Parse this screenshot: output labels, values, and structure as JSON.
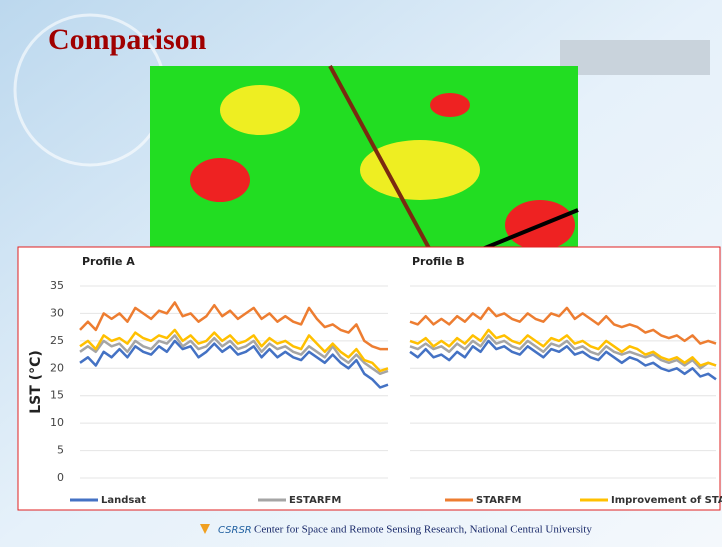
{
  "slide": {
    "title": "Comparison",
    "footer": "Center for Space and Remote Sensing Research, National Central University",
    "logo_text": "CSRSR"
  },
  "chart_data": [
    {
      "type": "line",
      "title": "Profile A",
      "y_label": "LST (°C)",
      "ylim": [
        0,
        35
      ],
      "yticks": [
        0,
        5,
        10,
        15,
        20,
        25,
        30,
        35
      ],
      "grid": true,
      "series": [
        {
          "name": "Landsat",
          "color": "#4472c4",
          "values": [
            21,
            22,
            20.5,
            23,
            22,
            23.5,
            22,
            24,
            23,
            22.5,
            24,
            23,
            25,
            23.5,
            24,
            22,
            23,
            24.5,
            23,
            24,
            22.5,
            23,
            24,
            22,
            23.5,
            22,
            23,
            22,
            21.5,
            23,
            22,
            21,
            22.5,
            21,
            20,
            21.5,
            19,
            18,
            16.5,
            17
          ]
        },
        {
          "name": "ESTARFM",
          "color": "#a5a5a5",
          "values": [
            23,
            24,
            23,
            25,
            24,
            24.5,
            23,
            25,
            24,
            23.5,
            25,
            24.5,
            26,
            24,
            25,
            23.5,
            24,
            25.5,
            24,
            25,
            23.5,
            24,
            25,
            23,
            24.5,
            23.5,
            24,
            23,
            22.5,
            24,
            23,
            22,
            24,
            22,
            21,
            22.5,
            21,
            20,
            19,
            19.5
          ]
        },
        {
          "name": "STARFM",
          "color": "#ed7d31",
          "values": [
            27,
            28.5,
            27,
            30,
            29,
            30,
            28.5,
            31,
            30,
            29,
            30.5,
            30,
            32,
            29.5,
            30,
            28.5,
            29.5,
            31.5,
            29.5,
            30.5,
            29,
            30,
            31,
            29,
            30,
            28.5,
            29.5,
            28.5,
            28,
            31,
            29,
            27.5,
            28,
            27,
            26.5,
            28,
            25,
            24,
            23.5,
            23.5
          ]
        },
        {
          "name": "Improvement of STARFM",
          "color": "#ffc000",
          "values": [
            24,
            25,
            23.5,
            26,
            25,
            25.5,
            24.5,
            26.5,
            25.5,
            25,
            26,
            25.5,
            27,
            25,
            26,
            24.5,
            25,
            26.5,
            25,
            26,
            24.5,
            25,
            26,
            24,
            25.5,
            24.5,
            25,
            24,
            23.5,
            26,
            24.5,
            23,
            24.5,
            23,
            22,
            23.5,
            21.5,
            21,
            19.5,
            20
          ]
        }
      ]
    },
    {
      "type": "line",
      "title": "Profile B",
      "ylim": [
        0,
        35
      ],
      "yticks": [
        0,
        5,
        10,
        15,
        20,
        25,
        30,
        35
      ],
      "grid": true,
      "series": [
        {
          "color": "#4472c4",
          "values": [
            23,
            22,
            23.5,
            22,
            22.5,
            21.5,
            23,
            22,
            24,
            23,
            25,
            23.5,
            24,
            23,
            22.5,
            24,
            23,
            22,
            23.5,
            23,
            24,
            22.5,
            23,
            22,
            21.5,
            23,
            22,
            21,
            22,
            21.5,
            20.5,
            21,
            20,
            19.5,
            20,
            19,
            20,
            18.5,
            19,
            18
          ]
        },
        {
          "color": "#a5a5a5",
          "values": [
            24,
            23.5,
            24.5,
            23.5,
            24,
            23,
            24.5,
            23.5,
            25,
            24,
            26,
            24.5,
            25,
            24,
            23.5,
            25,
            24,
            23,
            24.5,
            24,
            25,
            23.5,
            24,
            23,
            22.5,
            24,
            23,
            22.5,
            23,
            22.5,
            22,
            22.5,
            21.5,
            21,
            21.5,
            20.5,
            21.5,
            20,
            21,
            20.5
          ]
        },
        {
          "color": "#ed7d31",
          "values": [
            28.5,
            28,
            29.5,
            28,
            29,
            28,
            29.5,
            28.5,
            30,
            29,
            31,
            29.5,
            30,
            29,
            28.5,
            30,
            29,
            28.5,
            30,
            29.5,
            31,
            29,
            30,
            29,
            28,
            29.5,
            28,
            27.5,
            28,
            27.5,
            26.5,
            27,
            26,
            25.5,
            26,
            25,
            26,
            24.5,
            25,
            24.5
          ]
        },
        {
          "color": "#ffc000",
          "values": [
            25,
            24.5,
            25.5,
            24,
            25,
            24,
            25.5,
            24.5,
            26,
            25,
            27,
            25.5,
            26,
            25,
            24.5,
            26,
            25,
            24,
            25.5,
            25,
            26,
            24.5,
            25,
            24,
            23.5,
            25,
            24,
            23,
            24,
            23.5,
            22.5,
            23,
            22,
            21.5,
            22,
            21,
            22,
            20.5,
            21,
            20.5
          ]
        }
      ]
    }
  ]
}
